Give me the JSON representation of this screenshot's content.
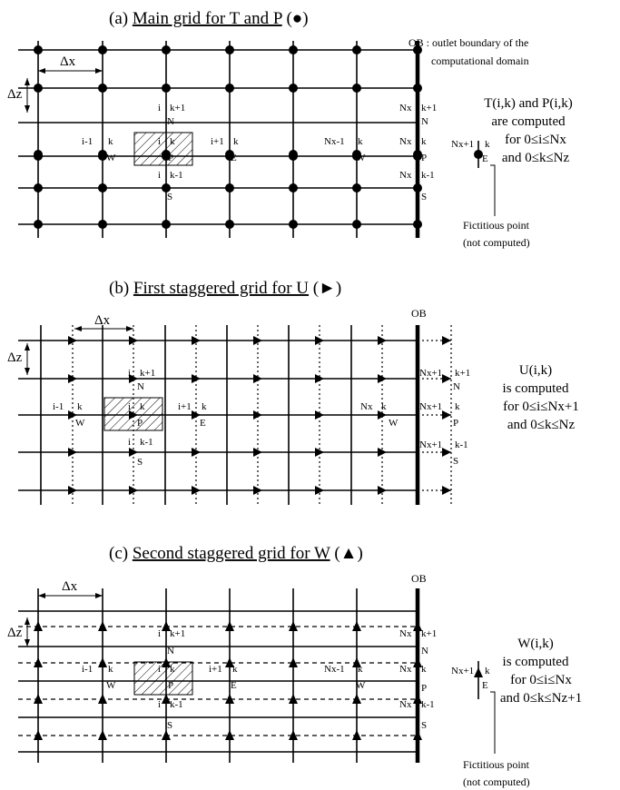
{
  "panel_a": {
    "title_prefix": "(a) ",
    "title_main": "Main grid for T and P",
    "title_suffix": " (●)",
    "ob_line1": "OB : outlet boundary of the",
    "ob_line2": "computational domain",
    "dx": "Δx",
    "dz": "Δz",
    "labels": {
      "i_top": "i",
      "kp1_top": "k+1",
      "n_top": "N",
      "im1": "i-1",
      "k_w": "k",
      "w": "W",
      "i_p": "i",
      "k_p": "k",
      "p": "P",
      "ip1": "i+1",
      "k_e": "k",
      "e": "E",
      "i_bot": "i",
      "km1_bot": "k-1",
      "s": "S",
      "nxm1": "Nx-1",
      "k_nxm1": "k",
      "w2": "W",
      "nx_top": "Nx",
      "kp1_r": "k+1",
      "n_r": "N",
      "nx_mid": "Nx",
      "k_r": "k",
      "p_r": "P",
      "nx_bot": "Nx",
      "km1_r": "k-1",
      "s_r": "S",
      "nxp1": "Nx+1",
      "k_fic": "k",
      "e_fic": "E"
    },
    "side_line1": "T(i,k) and P(i,k)",
    "side_line2": "are computed",
    "side_line3": "for 0≤i≤Nx",
    "side_line4": "and 0≤k≤Nz",
    "fict_line1": "Fictitious point",
    "fict_line2": "(not computed)"
  },
  "panel_b": {
    "title_prefix": "(b) ",
    "title_main": "First staggered grid for U",
    "title_suffix": " (►)",
    "ob": "OB",
    "dx": "Δx",
    "dz": "Δz",
    "labels": {
      "i_top": "i",
      "kp1_top": "k+1",
      "n_top": "N",
      "im1": "i-1",
      "k_w": "k",
      "w": "W",
      "i_p": "i",
      "k_p": "k",
      "p": "P",
      "ip1": "i+1",
      "k_e": "k",
      "e": "E",
      "i_bot": "i",
      "km1_bot": "k-1",
      "s": "S",
      "nx": "Nx",
      "k_nx": "k",
      "w2": "W",
      "nxp1_top": "Nx+1",
      "kp1_r": "k+1",
      "n_r": "N",
      "nxp1_mid": "Nx+1",
      "k_r": "k",
      "p_r": "P",
      "nxp1_bot": "Nx+1",
      "km1_r": "k-1",
      "s_r": "S"
    },
    "side_line1": "U(i,k)",
    "side_line2": "is computed",
    "side_line3": "for 0≤i≤Nx+1",
    "side_line4": "and 0≤k≤Nz"
  },
  "panel_c": {
    "title_prefix": "(c) ",
    "title_main": "Second staggered grid for W",
    "title_suffix": " (▲)",
    "ob": "OB",
    "dx": "Δx",
    "dz": "Δz",
    "labels": {
      "i_top": "i",
      "kp1_top": "k+1",
      "n_top": "N",
      "im1": "i-1",
      "k_w": "k",
      "w": "W",
      "i_p": "i",
      "k_p": "k",
      "p": "P",
      "ip1": "i+1",
      "k_e": "k",
      "e": "E",
      "i_bot": "i",
      "km1_bot": "k-1",
      "s": "S",
      "nxm1": "Nx-1",
      "k_nxm1": "k",
      "w2": "W",
      "nx_top": "Nx",
      "kp1_r": "k+1",
      "n_r": "N",
      "nx_mid": "Nx",
      "k_r": "k",
      "p_r": "P",
      "nx_bot": "Nx",
      "km1_r": "k-1",
      "s_r": "S",
      "nxp1": "Nx+1",
      "k_fic": "k",
      "e_fic": "E"
    },
    "side_line1": "W(i,k)",
    "side_line2": "is computed",
    "side_line3": "for 0≤i≤Nx",
    "side_line4": "and 0≤k≤Nz+1",
    "fict_line1": "Fictitious point",
    "fict_line2": "(not computed)"
  }
}
